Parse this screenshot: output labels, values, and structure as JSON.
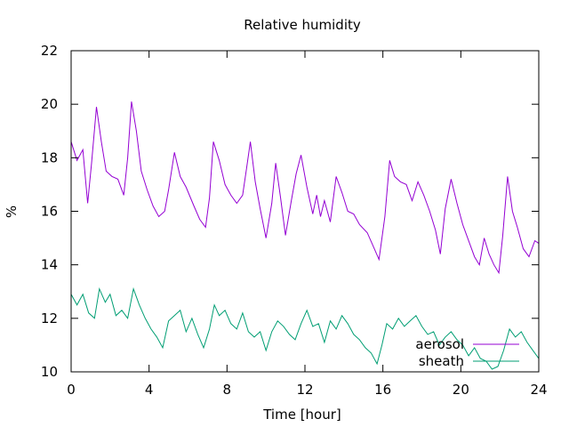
{
  "chart_data": {
    "type": "line",
    "title": "Relative humidity",
    "xlabel": "Time [hour]",
    "ylabel": "%",
    "xlim": [
      0,
      24
    ],
    "ylim": [
      10,
      22
    ],
    "x_ticks": [
      0,
      4,
      8,
      12,
      16,
      20,
      24
    ],
    "y_ticks": [
      10,
      12,
      14,
      16,
      18,
      20,
      22
    ],
    "grid": false,
    "legend_position": "bottom-right",
    "series": [
      {
        "name": "aerosol",
        "color": "#9400d3",
        "points": [
          [
            0.0,
            18.6
          ],
          [
            0.3,
            17.9
          ],
          [
            0.6,
            18.3
          ],
          [
            0.85,
            16.3
          ],
          [
            1.05,
            17.8
          ],
          [
            1.3,
            19.9
          ],
          [
            1.55,
            18.6
          ],
          [
            1.8,
            17.5
          ],
          [
            2.1,
            17.3
          ],
          [
            2.4,
            17.2
          ],
          [
            2.7,
            16.6
          ],
          [
            2.9,
            18.0
          ],
          [
            3.1,
            20.1
          ],
          [
            3.35,
            19.0
          ],
          [
            3.6,
            17.5
          ],
          [
            3.9,
            16.8
          ],
          [
            4.2,
            16.2
          ],
          [
            4.5,
            15.8
          ],
          [
            4.8,
            16.0
          ],
          [
            5.0,
            16.8
          ],
          [
            5.3,
            18.2
          ],
          [
            5.6,
            17.3
          ],
          [
            5.9,
            16.9
          ],
          [
            6.3,
            16.2
          ],
          [
            6.6,
            15.7
          ],
          [
            6.9,
            15.4
          ],
          [
            7.1,
            16.5
          ],
          [
            7.3,
            18.6
          ],
          [
            7.6,
            17.9
          ],
          [
            7.9,
            17.0
          ],
          [
            8.2,
            16.6
          ],
          [
            8.5,
            16.3
          ],
          [
            8.8,
            16.6
          ],
          [
            9.0,
            17.6
          ],
          [
            9.2,
            18.6
          ],
          [
            9.45,
            17.1
          ],
          [
            9.7,
            16.1
          ],
          [
            10.0,
            15.0
          ],
          [
            10.3,
            16.3
          ],
          [
            10.5,
            17.8
          ],
          [
            10.75,
            16.5
          ],
          [
            11.0,
            15.1
          ],
          [
            11.3,
            16.4
          ],
          [
            11.55,
            17.4
          ],
          [
            11.8,
            18.1
          ],
          [
            12.1,
            16.9
          ],
          [
            12.4,
            15.9
          ],
          [
            12.6,
            16.6
          ],
          [
            12.8,
            15.8
          ],
          [
            13.0,
            16.4
          ],
          [
            13.3,
            15.6
          ],
          [
            13.6,
            17.3
          ],
          [
            13.9,
            16.7
          ],
          [
            14.2,
            16.0
          ],
          [
            14.5,
            15.9
          ],
          [
            14.8,
            15.5
          ],
          [
            15.2,
            15.2
          ],
          [
            15.5,
            14.7
          ],
          [
            15.8,
            14.2
          ],
          [
            16.1,
            15.8
          ],
          [
            16.35,
            17.9
          ],
          [
            16.6,
            17.3
          ],
          [
            16.9,
            17.1
          ],
          [
            17.2,
            17.0
          ],
          [
            17.5,
            16.4
          ],
          [
            17.8,
            17.1
          ],
          [
            18.1,
            16.6
          ],
          [
            18.4,
            16.0
          ],
          [
            18.7,
            15.3
          ],
          [
            18.95,
            14.4
          ],
          [
            19.2,
            16.1
          ],
          [
            19.5,
            17.2
          ],
          [
            19.8,
            16.3
          ],
          [
            20.1,
            15.5
          ],
          [
            20.4,
            14.9
          ],
          [
            20.7,
            14.3
          ],
          [
            20.95,
            14.0
          ],
          [
            21.2,
            15.0
          ],
          [
            21.45,
            14.4
          ],
          [
            21.7,
            14.0
          ],
          [
            21.95,
            13.7
          ],
          [
            22.15,
            15.1
          ],
          [
            22.4,
            17.3
          ],
          [
            22.65,
            16.0
          ],
          [
            22.9,
            15.4
          ],
          [
            23.2,
            14.6
          ],
          [
            23.5,
            14.3
          ],
          [
            23.8,
            14.9
          ],
          [
            24.0,
            14.8
          ]
        ]
      },
      {
        "name": "sheath",
        "color": "#009e73",
        "points": [
          [
            0.0,
            12.9
          ],
          [
            0.3,
            12.5
          ],
          [
            0.6,
            12.9
          ],
          [
            0.9,
            12.2
          ],
          [
            1.2,
            12.0
          ],
          [
            1.45,
            13.1
          ],
          [
            1.75,
            12.6
          ],
          [
            2.0,
            12.9
          ],
          [
            2.3,
            12.1
          ],
          [
            2.6,
            12.3
          ],
          [
            2.9,
            12.0
          ],
          [
            3.2,
            13.1
          ],
          [
            3.5,
            12.5
          ],
          [
            3.8,
            12.0
          ],
          [
            4.1,
            11.6
          ],
          [
            4.4,
            11.3
          ],
          [
            4.7,
            10.9
          ],
          [
            5.0,
            11.9
          ],
          [
            5.3,
            12.1
          ],
          [
            5.6,
            12.3
          ],
          [
            5.9,
            11.5
          ],
          [
            6.2,
            12.0
          ],
          [
            6.5,
            11.4
          ],
          [
            6.8,
            10.9
          ],
          [
            7.1,
            11.6
          ],
          [
            7.35,
            12.5
          ],
          [
            7.6,
            12.1
          ],
          [
            7.9,
            12.3
          ],
          [
            8.2,
            11.8
          ],
          [
            8.5,
            11.6
          ],
          [
            8.8,
            12.2
          ],
          [
            9.1,
            11.5
          ],
          [
            9.4,
            11.3
          ],
          [
            9.7,
            11.5
          ],
          [
            10.0,
            10.8
          ],
          [
            10.3,
            11.5
          ],
          [
            10.6,
            11.9
          ],
          [
            10.9,
            11.7
          ],
          [
            11.2,
            11.4
          ],
          [
            11.5,
            11.2
          ],
          [
            11.8,
            11.8
          ],
          [
            12.1,
            12.3
          ],
          [
            12.4,
            11.7
          ],
          [
            12.7,
            11.8
          ],
          [
            13.0,
            11.1
          ],
          [
            13.3,
            11.9
          ],
          [
            13.6,
            11.6
          ],
          [
            13.9,
            12.1
          ],
          [
            14.2,
            11.8
          ],
          [
            14.5,
            11.4
          ],
          [
            14.8,
            11.2
          ],
          [
            15.1,
            10.9
          ],
          [
            15.4,
            10.7
          ],
          [
            15.7,
            10.3
          ],
          [
            15.95,
            11.0
          ],
          [
            16.2,
            11.8
          ],
          [
            16.5,
            11.6
          ],
          [
            16.8,
            12.0
          ],
          [
            17.1,
            11.7
          ],
          [
            17.4,
            11.9
          ],
          [
            17.7,
            12.1
          ],
          [
            18.0,
            11.7
          ],
          [
            18.3,
            11.4
          ],
          [
            18.6,
            11.5
          ],
          [
            18.9,
            11.0
          ],
          [
            19.2,
            11.3
          ],
          [
            19.5,
            11.5
          ],
          [
            19.8,
            11.2
          ],
          [
            20.1,
            11.0
          ],
          [
            20.4,
            10.6
          ],
          [
            20.7,
            10.9
          ],
          [
            21.0,
            10.5
          ],
          [
            21.3,
            10.4
          ],
          [
            21.6,
            10.1
          ],
          [
            21.9,
            10.2
          ],
          [
            22.2,
            10.8
          ],
          [
            22.5,
            11.6
          ],
          [
            22.8,
            11.3
          ],
          [
            23.1,
            11.5
          ],
          [
            23.4,
            11.1
          ],
          [
            23.7,
            10.8
          ],
          [
            24.0,
            10.5
          ]
        ]
      }
    ]
  }
}
